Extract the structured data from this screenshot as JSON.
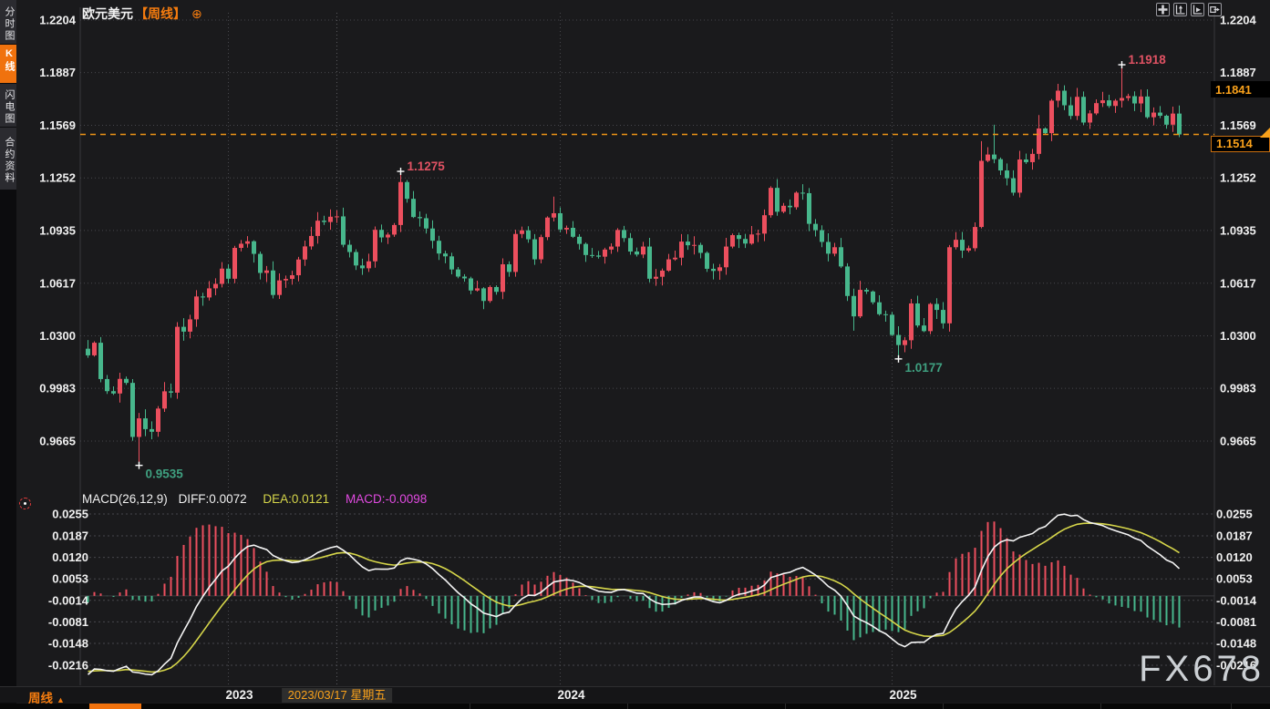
{
  "header": {
    "symbol": "欧元美元",
    "period_tag": "【周线】",
    "settings_icon": "⊕"
  },
  "sidebar": {
    "items": [
      {
        "label": "分时图",
        "active": false
      },
      {
        "label": "K线图",
        "active": true
      },
      {
        "label": "闪电图",
        "active": false
      },
      {
        "label": "合约资料",
        "active": false
      }
    ]
  },
  "toolbar_icons": [
    {
      "name": "crosshair-icon"
    },
    {
      "name": "zoom-axis-up-icon"
    },
    {
      "name": "zoom-axis-right-icon"
    },
    {
      "name": "pan-right-icon"
    }
  ],
  "macd_header": {
    "label": "MACD(26,12,9)",
    "diff": "DIFF:0.0072",
    "dea": "DEA:0.0121",
    "macd": "MACD:-0.0098"
  },
  "price_tags": {
    "upper": "1.1841",
    "current": "1.1514"
  },
  "x_axis": {
    "period_label": "周线",
    "period_arrow": "▲",
    "years": [
      {
        "label": "2023",
        "week_index": 22
      },
      {
        "label": "2024",
        "week_index": 74
      },
      {
        "label": "2025",
        "week_index": 126
      }
    ],
    "selected": {
      "label": "2023/03/17 星期五",
      "week_index": 39
    }
  },
  "watermark": "FX678",
  "colors": {
    "bg": "#1a1a1c",
    "grid": "#47474c",
    "axis_text": "#f0f0f0",
    "up": "#ec4f5e",
    "down": "#47b78c",
    "accent": "#f57c0f",
    "tag_text": "#f9a11b",
    "dash_line": "#eb9316",
    "diff_line": "#f5f5f5",
    "dea_line": "#d6d64a",
    "macd_value": "#e14ae1",
    "ann_high": "#e05263",
    "ann_low": "#3fa080",
    "zero_line": "#3a3a3e",
    "panel_border": "#38383c",
    "cross": "#ffffff"
  },
  "chart_data": {
    "type": "candlestick",
    "title": "欧元美元 周线 (EUR/USD weekly)",
    "y_ticks": [
      "1.2204",
      "1.1887",
      "1.1569",
      "1.1252",
      "1.0935",
      "1.0617",
      "1.0300",
      "0.9983",
      "0.9665"
    ],
    "current_price": 1.1514,
    "upper_tag_price": 1.1841,
    "first_open": 1.0222,
    "closes": [
      1.0182,
      1.0258,
      1.0039,
      0.9966,
      0.9952,
      1.004,
      1.0016,
      0.969,
      0.9802,
      0.9737,
      0.9721,
      0.9861,
      0.9965,
      0.9957,
      1.0354,
      1.0325,
      1.0399,
      1.0537,
      1.0531,
      1.0586,
      1.0613,
      1.0705,
      1.0644,
      1.083,
      1.0855,
      1.087,
      1.0794,
      1.0679,
      1.0694,
      1.0546,
      1.0634,
      1.0643,
      1.0665,
      1.076,
      1.0839,
      1.0902,
      1.0994,
      1.0986,
      1.1018,
      1.102,
      1.0849,
      1.0805,
      1.0724,
      1.0707,
      1.0749,
      1.0939,
      1.0893,
      1.091,
      1.0968,
      1.1227,
      1.1126,
      1.1016,
      1.1009,
      1.0947,
      1.0873,
      1.0796,
      1.0779,
      1.07,
      1.0657,
      1.0646,
      1.0573,
      1.0586,
      1.051,
      1.0594,
      1.0565,
      1.0731,
      1.0685,
      1.0914,
      1.0936,
      1.0882,
      1.0761,
      1.0895,
      1.1013,
      1.1039,
      1.0941,
      1.0951,
      1.0897,
      1.0854,
      1.0787,
      1.0784,
      1.0777,
      1.082,
      1.0838,
      1.0938,
      1.0889,
      1.0808,
      1.079,
      1.0838,
      1.0644,
      1.0656,
      1.0693,
      1.0761,
      1.0771,
      1.0868,
      1.0846,
      1.0848,
      1.08,
      1.0704,
      1.0691,
      1.0713,
      1.0838,
      1.0907,
      1.0884,
      1.0856,
      1.0911,
      1.0916,
      1.1027,
      1.1192,
      1.1048,
      1.1084,
      1.1075,
      1.1163,
      1.116,
      1.0975,
      1.0937,
      1.0866,
      1.0795,
      1.0834,
      1.0718,
      1.054,
      1.0417,
      1.0577,
      1.0567,
      1.0502,
      1.043,
      1.0427,
      1.0305,
      1.0244,
      1.0273,
      1.0495,
      1.0362,
      1.0328,
      1.0492,
      1.0456,
      1.0375,
      1.0834,
      1.0879,
      1.0814,
      1.0828,
      1.0956,
      1.1355,
      1.1393,
      1.1365,
      1.1297,
      1.125,
      1.1163,
      1.1363,
      1.1347,
      1.1397,
      1.155,
      1.1522,
      1.1718,
      1.1778,
      1.169,
      1.1626,
      1.1741,
      1.1586,
      1.1641,
      1.1703,
      1.172,
      1.1686,
      1.1718,
      1.1734,
      1.1745,
      1.1701,
      1.1743,
      1.1618,
      1.1646,
      1.1627,
      1.1573,
      1.164,
      1.1514
    ],
    "extreme_overrides": [
      {
        "i": 8,
        "low": 0.9535
      },
      {
        "i": 49,
        "high": 1.1275
      },
      {
        "i": 73,
        "high": 1.1139
      },
      {
        "i": 89,
        "low": 1.0601
      },
      {
        "i": 107,
        "high": 1.1202
      },
      {
        "i": 112,
        "high": 1.1214
      },
      {
        "i": 120,
        "low": 1.0331
      },
      {
        "i": 127,
        "low": 1.0177
      },
      {
        "i": 140,
        "high": 1.1474
      },
      {
        "i": 142,
        "high": 1.1573
      },
      {
        "i": 149,
        "high": 1.1631
      },
      {
        "i": 162,
        "high": 1.1918
      },
      {
        "i": 171,
        "low": 1.1498
      }
    ],
    "annotations": [
      {
        "i": 8,
        "value": "0.9535",
        "side": "low"
      },
      {
        "i": 49,
        "value": "1.1275",
        "side": "high"
      },
      {
        "i": 127,
        "value": "1.0177",
        "side": "low"
      },
      {
        "i": 162,
        "value": "1.1918",
        "side": "high"
      }
    ],
    "macd": {
      "params": [
        26,
        12,
        9
      ],
      "seed_diff": -0.0245,
      "seed_dea": -0.0235,
      "display": {
        "diff": 0.0072,
        "dea": 0.0121,
        "macd": -0.0098
      },
      "y_ticks": [
        "0.0255",
        "0.0187",
        "0.0120",
        "0.0053",
        "-0.0014",
        "-0.0081",
        "-0.0148",
        "-0.0216"
      ]
    }
  }
}
